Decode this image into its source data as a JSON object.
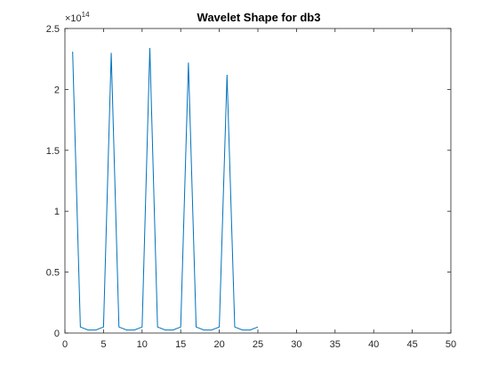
{
  "chart_data": {
    "type": "line",
    "title": "Wavelet Shape for db3",
    "xlabel": "",
    "ylabel": "",
    "xlim": [
      0,
      50
    ],
    "ylim": [
      0,
      2.5
    ],
    "y_multiplier": {
      "base": "×10",
      "exponent": "14"
    },
    "x_ticks": [
      "0",
      "5",
      "10",
      "15",
      "20",
      "25",
      "30",
      "35",
      "40",
      "45",
      "50"
    ],
    "y_ticks": [
      "0",
      "0.5",
      "1",
      "1.5",
      "2",
      "2.5"
    ],
    "grid": false,
    "series": [
      {
        "color": "#0072BD",
        "x": [
          1,
          2,
          3,
          4,
          5,
          6,
          7,
          8,
          9,
          10,
          11,
          12,
          13,
          14,
          15,
          16,
          17,
          18,
          19,
          20,
          21,
          22,
          23,
          24,
          25
        ],
        "y": [
          2.31,
          0.05,
          0.025,
          0.025,
          0.05,
          2.3,
          0.05,
          0.025,
          0.025,
          0.05,
          2.34,
          0.05,
          0.025,
          0.025,
          0.05,
          2.22,
          0.05,
          0.025,
          0.025,
          0.05,
          2.12,
          0.05,
          0.025,
          0.025,
          0.05
        ]
      }
    ]
  }
}
